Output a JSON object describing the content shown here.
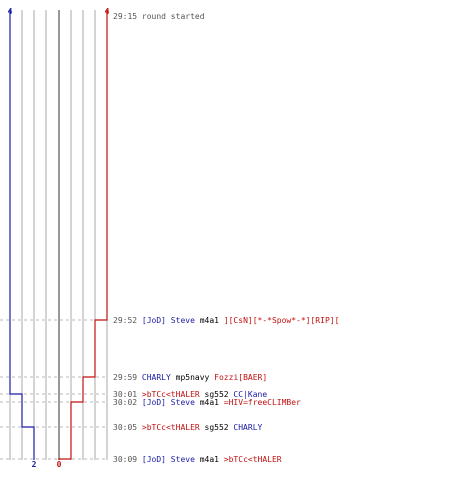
{
  "colors": {
    "blue_team": "#1a1aa8",
    "red_team": "#c01010",
    "neutral_text": "#000000",
    "time_text": "#555555",
    "lane_line": "#a8a8a8",
    "center_line": "#777777",
    "dash_line": "#b8b8b8"
  },
  "scores": {
    "blue_start": "4",
    "red_start": "4",
    "blue_end": "2",
    "red_end": "0"
  },
  "events": [
    {
      "time": "29:15",
      "parts": [
        {
          "text": "round started",
          "team": "neutral_gray"
        }
      ]
    },
    {
      "time": "29:52",
      "parts": [
        {
          "text": "[JoD] Steve",
          "team": "blue"
        },
        {
          "text": " m4a1 ",
          "team": "neutral"
        },
        {
          "text": "][CsN][*-*Spow*-*][RIP][",
          "team": "red"
        }
      ]
    },
    {
      "time": "29:59",
      "parts": [
        {
          "text": "CHARLY",
          "team": "blue"
        },
        {
          "text": " mp5navy ",
          "team": "neutral"
        },
        {
          "text": "Fozzi[BAER]",
          "team": "red"
        }
      ]
    },
    {
      "time": "30:01",
      "parts": [
        {
          "text": ">bTCc<tHALER",
          "team": "red"
        },
        {
          "text": " sg552 ",
          "team": "neutral"
        },
        {
          "text": "CC|Kane",
          "team": "blue"
        }
      ]
    },
    {
      "time": "30:02",
      "parts": [
        {
          "text": "[JoD] Steve",
          "team": "blue"
        },
        {
          "text": " m4a1 ",
          "team": "neutral"
        },
        {
          "text": "=HIV=freeCLIMBer",
          "team": "red"
        }
      ]
    },
    {
      "time": "30:05",
      "parts": [
        {
          "text": ">bTCc<tHALER",
          "team": "red"
        },
        {
          "text": " sg552 ",
          "team": "neutral"
        },
        {
          "text": "CHARLY",
          "team": "blue"
        }
      ]
    },
    {
      "time": "30:09",
      "parts": [
        {
          "text": "[JoD] Steve",
          "team": "blue"
        },
        {
          "text": " m4a1 ",
          "team": "neutral"
        },
        {
          "text": ">bTCc<tHALER",
          "team": "red"
        }
      ]
    }
  ]
}
